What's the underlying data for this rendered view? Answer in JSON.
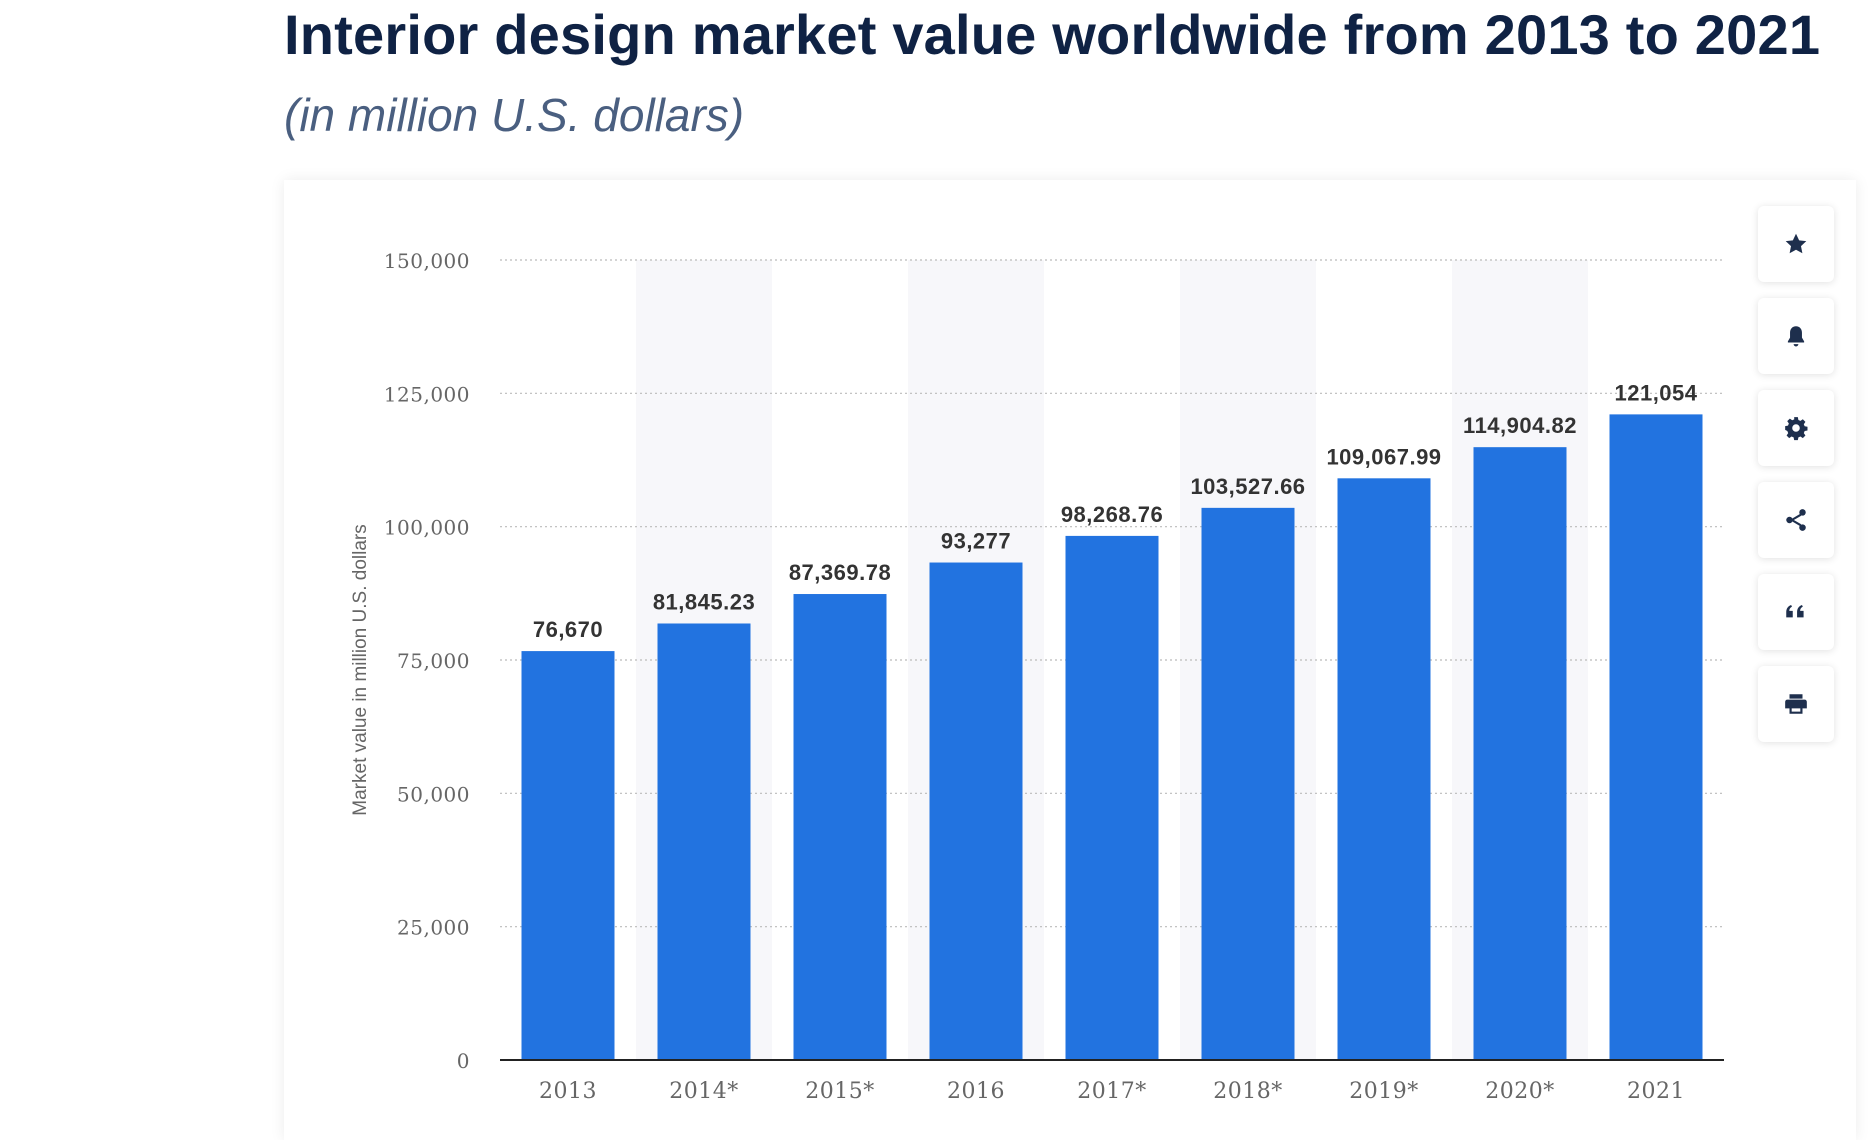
{
  "header": {
    "title": "Interior design market value worldwide from 2013 to 2021",
    "subtitle": "(in million U.S. dollars)"
  },
  "toolbar": {
    "buttons": [
      {
        "icon": "star-icon",
        "label": "Favorite"
      },
      {
        "icon": "bell-icon",
        "label": "Notifications"
      },
      {
        "icon": "gear-icon",
        "label": "Settings"
      },
      {
        "icon": "share-icon",
        "label": "Share"
      },
      {
        "icon": "quote-icon",
        "label": "Cite"
      },
      {
        "icon": "print-icon",
        "label": "Print"
      }
    ]
  },
  "colors": {
    "bar": "#2273e0",
    "title": "#0f2244",
    "axis_text": "#666666",
    "label_text": "#333333",
    "band": "#f7f7fa",
    "grid": "#bbbbbb"
  },
  "chart_data": {
    "type": "bar",
    "title": "Interior design market value worldwide from 2013 to 2021",
    "subtitle": "(in million U.S. dollars)",
    "xlabel": "",
    "ylabel": "Market value in million U.S. dollars",
    "ylim": [
      0,
      150000
    ],
    "yticks": [
      0,
      25000,
      50000,
      75000,
      100000,
      125000,
      150000
    ],
    "ytick_labels": [
      "0",
      "25,000",
      "50,000",
      "75,000",
      "100,000",
      "125,000",
      "150,000"
    ],
    "categories": [
      "2013",
      "2014*",
      "2015*",
      "2016",
      "2017*",
      "2018*",
      "2019*",
      "2020*",
      "2021"
    ],
    "values": [
      76670,
      81845.23,
      87369.78,
      93277,
      98268.76,
      103527.66,
      109067.99,
      114904.82,
      121054
    ],
    "value_labels": [
      "76,670",
      "81,845.23",
      "87,369.78",
      "93,277",
      "98,268.76",
      "103,527.66",
      "109,067.99",
      "114,904.82",
      "121,054"
    ],
    "grid": true,
    "legend": "none"
  }
}
